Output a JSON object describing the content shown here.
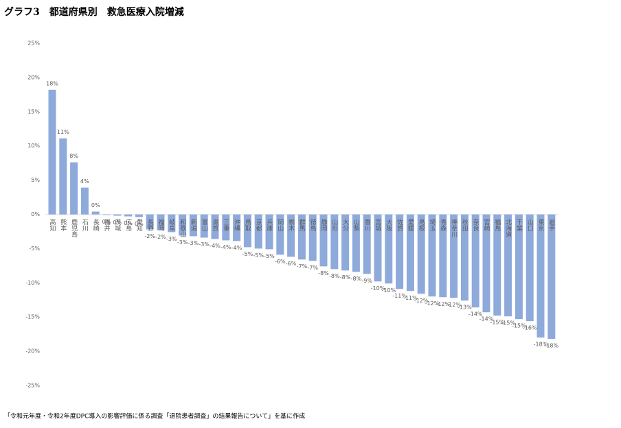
{
  "chart_data": {
    "type": "bar",
    "title": "グラフ3　都道府県別　救急医療入院増減",
    "note": "「令和元年度・令和2年度DPC導入の影響評価に係る調査「退院患者調査」の結果報告について」を基に作成",
    "categories": [
      "高知",
      "熊本",
      "鹿児島",
      "石川",
      "長崎",
      "福井",
      "茨城",
      "広島",
      "愛知",
      "長野",
      "福岡",
      "岐阜",
      "和歌山",
      "新潟",
      "富山",
      "滋賀",
      "三重",
      "沖縄",
      "鳥取",
      "京都",
      "兵庫",
      "岡山",
      "栃木",
      "群馬",
      "徳島",
      "静岡",
      "山形",
      "大分",
      "山梨",
      "香川",
      "宮城",
      "大阪",
      "佐賀",
      "愛媛",
      "島根",
      "埼玉",
      "青森",
      "神奈川",
      "秋田",
      "奈良",
      "宮崎",
      "福島",
      "北海道",
      "千葉",
      "山口",
      "東京",
      "岩手"
    ],
    "values": [
      18.2,
      11.1,
      7.6,
      3.9,
      0.4,
      -0.1,
      -0.2,
      -0.3,
      -0.4,
      -2.2,
      -2.3,
      -2.6,
      -3.1,
      -3.2,
      -3.4,
      -3.6,
      -3.8,
      -3.9,
      -4.8,
      -5.0,
      -5.1,
      -5.9,
      -6.2,
      -6.6,
      -6.8,
      -7.6,
      -8.0,
      -8.2,
      -8.4,
      -8.7,
      -9.8,
      -10.1,
      -10.9,
      -11.2,
      -11.6,
      -12.0,
      -12.1,
      -12.2,
      -12.6,
      -13.6,
      -14.3,
      -14.8,
      -14.9,
      -15.3,
      -15.6,
      -18.0,
      -18.2
    ],
    "value_labels": [
      "18%",
      "11%",
      "8%",
      "4%",
      "0%",
      "0%",
      "0%",
      "0%",
      "0%",
      "-2%",
      "-2%",
      "-3%",
      "-3%",
      "-3%",
      "-3%",
      "-4%",
      "-4%",
      "-4%",
      "-5%",
      "-5%",
      "-5%",
      "-6%",
      "-6%",
      "-7%",
      "-7%",
      "-8%",
      "-8%",
      "-8%",
      "-8%",
      "-9%",
      "-10%",
      "-10%",
      "-11%",
      "-11%",
      "-12%",
      "-12%",
      "-12%",
      "-12%",
      "-13%",
      "-14%",
      "-14%",
      "-15%",
      "-15%",
      "-15%",
      "-16%",
      "-18%",
      "-18%"
    ],
    "color": "#8eaadb",
    "ylim": [
      -25,
      25
    ],
    "yticks": [
      {
        "value": -25,
        "label": "-25%"
      },
      {
        "value": -20,
        "label": "-20%"
      },
      {
        "value": -15,
        "label": "-15%"
      },
      {
        "value": -10,
        "label": "-10%"
      },
      {
        "value": -5,
        "label": "-5%"
      },
      {
        "value": 0,
        "label": "0%"
      },
      {
        "value": 5,
        "label": "5%"
      },
      {
        "value": 10,
        "label": "10%"
      },
      {
        "value": 15,
        "label": "15%"
      },
      {
        "value": 20,
        "label": "20%"
      },
      {
        "value": 25,
        "label": "25%"
      }
    ],
    "grid": false
  }
}
